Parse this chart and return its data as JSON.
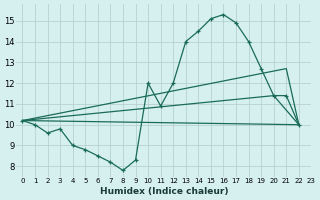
{
  "xlabel": "Humidex (Indice chaleur)",
  "background_color": "#d6f0f0",
  "grid_color": "#b8d0d0",
  "line_color": "#1a6b5a",
  "xlim": [
    -0.5,
    23
  ],
  "ylim": [
    7.5,
    15.8
  ],
  "yticks": [
    8,
    9,
    10,
    11,
    12,
    13,
    14,
    15
  ],
  "xticks": [
    0,
    1,
    2,
    3,
    4,
    5,
    6,
    7,
    8,
    9,
    10,
    11,
    12,
    13,
    14,
    15,
    16,
    17,
    18,
    19,
    20,
    21,
    22,
    23
  ],
  "line1_x": [
    0,
    1,
    2,
    3,
    4,
    5,
    6,
    7,
    8,
    9,
    10,
    11,
    12,
    13,
    14,
    15,
    16,
    17,
    18,
    19,
    20,
    21,
    22
  ],
  "line1_y": [
    10.2,
    10.0,
    9.6,
    9.8,
    9.0,
    8.8,
    8.5,
    8.2,
    7.8,
    8.3,
    12.0,
    10.9,
    12.0,
    14.0,
    14.5,
    15.1,
    15.3,
    14.9,
    14.0,
    12.7,
    11.4,
    11.4,
    10.0
  ],
  "line2_x": [
    0,
    21,
    22
  ],
  "line2_y": [
    10.2,
    12.7,
    10.0
  ],
  "line3_x": [
    0,
    20,
    22
  ],
  "line3_y": [
    10.2,
    11.4,
    10.0
  ],
  "line4_x": [
    0,
    22
  ],
  "line4_y": [
    10.2,
    10.0
  ]
}
